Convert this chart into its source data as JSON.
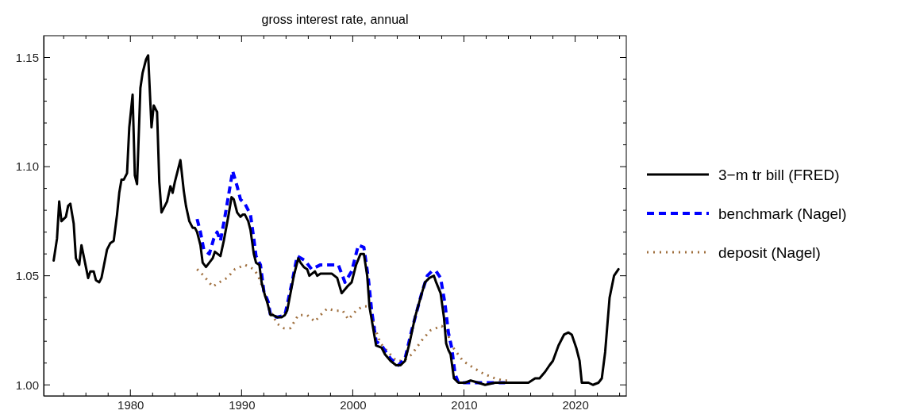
{
  "chart_data": {
    "type": "line",
    "title": "gross interest rate, annual",
    "xlim": [
      1972.2,
      2024.6
    ],
    "ylim": [
      0.995,
      1.16
    ],
    "xticks": [
      {
        "value": 1974,
        "label": null
      },
      {
        "value": 1976,
        "label": null
      },
      {
        "value": 1978,
        "label": null
      },
      1980,
      {
        "value": 1982,
        "label": null
      },
      {
        "value": 1984,
        "label": null
      },
      {
        "value": 1986,
        "label": null
      },
      {
        "value": 1988,
        "label": null
      },
      1990,
      {
        "value": 1992,
        "label": null
      },
      {
        "value": 1994,
        "label": null
      },
      {
        "value": 1996,
        "label": null
      },
      {
        "value": 1998,
        "label": null
      },
      2000,
      {
        "value": 2002,
        "label": null
      },
      {
        "value": 2004,
        "label": null
      },
      {
        "value": 2006,
        "label": null
      },
      {
        "value": 2008,
        "label": null
      },
      2010,
      {
        "value": 2012,
        "label": null
      },
      {
        "value": 2014,
        "label": null
      },
      {
        "value": 2016,
        "label": null
      },
      {
        "value": 2018,
        "label": null
      },
      2020,
      {
        "value": 2022,
        "label": null
      },
      {
        "value": 2024,
        "label": null
      }
    ],
    "yticks": [
      {
        "value": 1.0,
        "label": "1.00"
      },
      {
        "value": 1.01,
        "label": null
      },
      {
        "value": 1.02,
        "label": null
      },
      {
        "value": 1.03,
        "label": null
      },
      {
        "value": 1.04,
        "label": null
      },
      1.05,
      {
        "value": 1.06,
        "label": null
      },
      {
        "value": 1.07,
        "label": null
      },
      {
        "value": 1.08,
        "label": null
      },
      {
        "value": 1.09,
        "label": null
      },
      {
        "value": 1.1,
        "label": "1.10"
      },
      {
        "value": 1.11,
        "label": null
      },
      {
        "value": 1.12,
        "label": null
      },
      {
        "value": 1.13,
        "label": null
      },
      {
        "value": 1.14,
        "label": null
      },
      1.15
    ],
    "legend": "right",
    "grid": false,
    "series": [
      {
        "name": "3−m tr bill (FRED)",
        "color": "#000000",
        "line_style": "solid",
        "x": [
          1973.1,
          1973.4,
          1973.6,
          1973.8,
          1974.2,
          1974.4,
          1974.6,
          1974.9,
          1975.1,
          1975.4,
          1975.6,
          1976.2,
          1976.4,
          1976.7,
          1976.9,
          1977.2,
          1977.4,
          1977.9,
          1978.2,
          1978.5,
          1978.8,
          1979.0,
          1979.2,
          1979.4,
          1979.7,
          1979.9,
          1980.2,
          1980.4,
          1980.6,
          1980.9,
          1981.1,
          1981.4,
          1981.6,
          1981.9,
          1982.1,
          1982.4,
          1982.6,
          1982.8,
          1983.1,
          1983.3,
          1983.6,
          1983.8,
          1984.0,
          1984.3,
          1984.5,
          1984.8,
          1985.0,
          1985.3,
          1985.6,
          1985.8,
          1986.0,
          1986.3,
          1986.5,
          1986.8,
          1987.1,
          1987.4,
          1987.6,
          1988.1,
          1988.4,
          1988.8,
          1989.1,
          1989.3,
          1989.6,
          1989.9,
          1990.1,
          1990.3,
          1990.6,
          1990.8,
          1991.1,
          1991.3,
          1991.6,
          1991.8,
          1992.1,
          1992.3,
          1992.6,
          1992.8,
          1993.2,
          1993.6,
          1993.9,
          1994.1,
          1994.4,
          1994.7,
          1995.1,
          1995.3,
          1995.6,
          1995.9,
          1996.1,
          1996.6,
          1996.8,
          1997.1,
          1997.8,
          1998.1,
          1998.6,
          1999.0,
          1999.5,
          1999.9,
          2000.3,
          2000.7,
          2001.0,
          2001.3,
          2001.5,
          2001.7,
          2002.1,
          2002.6,
          2002.9,
          2003.4,
          2003.9,
          2004.3,
          2004.7,
          2005.1,
          2005.6,
          2006.1,
          2006.5,
          2006.9,
          2007.3,
          2007.5,
          2007.9,
          2008.2,
          2008.4,
          2008.6,
          2008.8,
          2009.1,
          2009.5,
          2010.1,
          2010.6,
          2011.3,
          2011.9,
          2012.8,
          2013.7,
          2014.7,
          2015.8,
          2016.4,
          2016.8,
          2017.3,
          2017.7,
          2018.0,
          2018.5,
          2019.0,
          2019.4,
          2019.7,
          2020.1,
          2020.4,
          2020.6,
          2021.2,
          2021.6,
          2022.1,
          2022.4,
          2022.7,
          2023.1,
          2023.5,
          2023.9
        ],
        "values": [
          1.057,
          1.067,
          1.084,
          1.075,
          1.077,
          1.082,
          1.083,
          1.074,
          1.058,
          1.055,
          1.064,
          1.049,
          1.052,
          1.052,
          1.048,
          1.047,
          1.049,
          1.062,
          1.065,
          1.066,
          1.078,
          1.088,
          1.094,
          1.094,
          1.097,
          1.118,
          1.133,
          1.096,
          1.092,
          1.136,
          1.143,
          1.149,
          1.151,
          1.118,
          1.128,
          1.125,
          1.093,
          1.079,
          1.082,
          1.084,
          1.091,
          1.088,
          1.093,
          1.099,
          1.103,
          1.089,
          1.082,
          1.075,
          1.072,
          1.072,
          1.07,
          1.064,
          1.056,
          1.054,
          1.056,
          1.058,
          1.061,
          1.059,
          1.066,
          1.077,
          1.086,
          1.085,
          1.079,
          1.077,
          1.078,
          1.078,
          1.075,
          1.071,
          1.06,
          1.056,
          1.055,
          1.047,
          1.041,
          1.038,
          1.032,
          1.032,
          1.031,
          1.031,
          1.032,
          1.034,
          1.042,
          1.05,
          1.058,
          1.056,
          1.054,
          1.053,
          1.05,
          1.052,
          1.05,
          1.051,
          1.051,
          1.051,
          1.049,
          1.042,
          1.045,
          1.047,
          1.055,
          1.06,
          1.06,
          1.05,
          1.036,
          1.03,
          1.018,
          1.017,
          1.014,
          1.011,
          1.009,
          1.009,
          1.011,
          1.019,
          1.031,
          1.04,
          1.047,
          1.049,
          1.05,
          1.047,
          1.042,
          1.031,
          1.019,
          1.016,
          1.014,
          1.003,
          1.001,
          1.001,
          1.002,
          1.001,
          1.0,
          1.001,
          1.001,
          1.001,
          1.001,
          1.003,
          1.003,
          1.006,
          1.009,
          1.011,
          1.018,
          1.023,
          1.024,
          1.023,
          1.017,
          1.011,
          1.001,
          1.001,
          1.0,
          1.001,
          1.003,
          1.015,
          1.04,
          1.05,
          1.053
        ]
      },
      {
        "name": "benchmark (Nagel)",
        "color": "#0000ff",
        "line_style": "dashed",
        "x": [
          1986.0,
          1986.3,
          1986.6,
          1987.1,
          1987.5,
          1987.8,
          1988.1,
          1988.5,
          1988.9,
          1989.2,
          1989.6,
          1989.9,
          1990.3,
          1990.8,
          1991.1,
          1991.3,
          1991.7,
          1992.0,
          1992.4,
          1992.6,
          1993.2,
          1993.9,
          1994.5,
          1995.0,
          1995.7,
          1996.3,
          1997.1,
          1997.9,
          1998.7,
          1999.3,
          1999.9,
          2000.5,
          2001.0,
          2001.4,
          2001.7,
          2002.1,
          2002.6,
          2003.4,
          2004.1,
          2004.7,
          2005.3,
          2006.2,
          2006.7,
          2007.1,
          2007.5,
          2007.9,
          2008.3,
          2008.6,
          2008.9,
          2009.2,
          2009.5,
          2010.4,
          2011.3,
          2012.3,
          2013.7
        ],
        "values": [
          1.076,
          1.07,
          1.062,
          1.06,
          1.067,
          1.07,
          1.066,
          1.077,
          1.089,
          1.098,
          1.091,
          1.085,
          1.083,
          1.078,
          1.067,
          1.059,
          1.055,
          1.043,
          1.038,
          1.032,
          1.031,
          1.032,
          1.046,
          1.059,
          1.057,
          1.053,
          1.055,
          1.055,
          1.055,
          1.047,
          1.052,
          1.064,
          1.063,
          1.049,
          1.034,
          1.02,
          1.018,
          1.012,
          1.009,
          1.012,
          1.025,
          1.042,
          1.05,
          1.052,
          1.052,
          1.049,
          1.037,
          1.024,
          1.017,
          1.005,
          1.001,
          1.001,
          1.001,
          1.001,
          1.001
        ]
      },
      {
        "name": "deposit (Nagel)",
        "color": "#a0703f",
        "line_style": "dotted",
        "x": [
          1986.0,
          1986.6,
          1987.4,
          1988.0,
          1988.7,
          1989.4,
          1990.3,
          1991.1,
          1991.5,
          1992.0,
          1992.5,
          1993.2,
          1993.8,
          1994.4,
          1995.1,
          1995.9,
          1996.6,
          1997.1,
          1997.7,
          1998.4,
          1999.1,
          1999.6,
          2000.3,
          2000.9,
          2001.5,
          2002.0,
          2002.5,
          2003.2,
          2003.9,
          2004.6,
          2005.3,
          2006.3,
          2007.0,
          2008.0,
          2008.5,
          2008.9,
          2009.9,
          2010.8,
          2011.8,
          2012.8,
          2013.5,
          2014.1
        ],
        "values": [
          1.053,
          1.05,
          1.045,
          1.047,
          1.049,
          1.053,
          1.055,
          1.053,
          1.05,
          1.043,
          1.035,
          1.028,
          1.026,
          1.026,
          1.032,
          1.032,
          1.029,
          1.032,
          1.035,
          1.034,
          1.034,
          1.03,
          1.034,
          1.036,
          1.036,
          1.026,
          1.019,
          1.015,
          1.011,
          1.011,
          1.014,
          1.021,
          1.025,
          1.027,
          1.024,
          1.018,
          1.011,
          1.008,
          1.005,
          1.003,
          1.002,
          1.002
        ]
      }
    ]
  }
}
